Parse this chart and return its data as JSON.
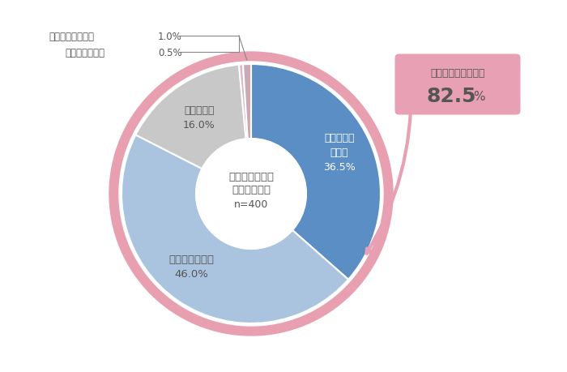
{
  "segments": [
    {
      "label": "とても強く\nなった\n36.5%",
      "value": 36.5,
      "color": "#5b8ec4",
      "text_color": "#ffffff"
    },
    {
      "label": "やや強くなった\n46.0%",
      "value": 46.0,
      "color": "#aac4df",
      "text_color": "#555555"
    },
    {
      "label": "変化はない\n16.0%",
      "value": 16.0,
      "color": "#c8c8c8",
      "text_color": "#555555"
    },
    {
      "label": "",
      "value": 0.5,
      "color": "#dbb8c4",
      "text_color": "#555555"
    },
    {
      "label": "",
      "value": 1.0,
      "color": "#cca8b4",
      "text_color": "#555555"
    }
  ],
  "center_text_line1": "アウトドア活動",
  "center_text_line2": "したい気持ち",
  "center_text_line3": "n=400",
  "callout_text_line1": "「強くなった」　計",
  "callout_text_line2": "82.5%",
  "outer_ring_color": "#e8a0b0",
  "callout_bg_color": "#e8a0b4",
  "callout_text_color": "#555555",
  "outer_annot_label1": "とても弱くなった",
  "outer_annot_val1": "1.0%",
  "outer_annot_label2": "やや弱くなった",
  "outer_annot_val2": "0.5%",
  "bg_color": "#ffffff",
  "wedge_linewidth": 1.5,
  "wedge_edgecolor": "#ffffff"
}
